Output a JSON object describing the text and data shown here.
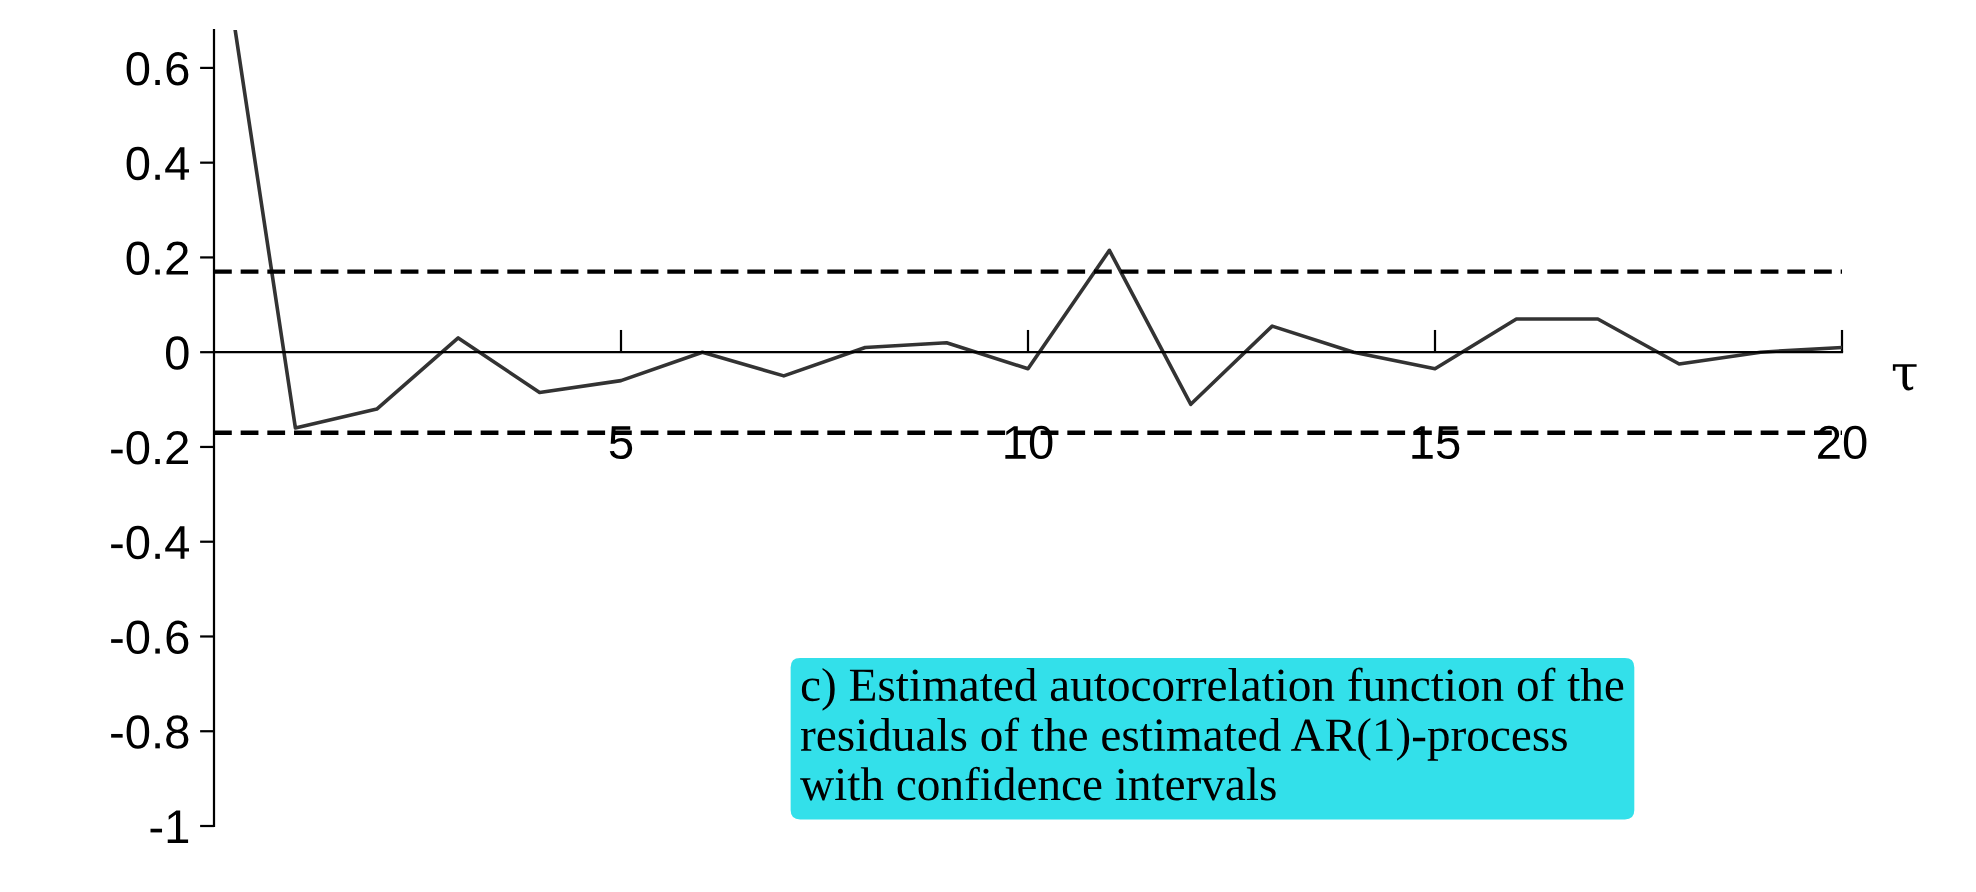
{
  "chart_data": {
    "type": "line",
    "xlabel": "τ",
    "annotations": [
      "c) Estimated autocorrelation function of the\nresiduals of the estimated AR(1)-process\nwith confidence intervals"
    ],
    "x": [
      0.26,
      1,
      2,
      3,
      4,
      5,
      6,
      7,
      8,
      9,
      10,
      11,
      12,
      13,
      14,
      15,
      16,
      17,
      18,
      19,
      20
    ],
    "series": [
      {
        "color": "#333333",
        "values": [
          0.68,
          -0.16,
          -0.12,
          0.03,
          -0.085,
          -0.06,
          0,
          -0.05,
          0.01,
          0.02,
          -0.035,
          0.215,
          -0.11,
          0.055,
          0,
          -0.035,
          0.07,
          0.07,
          -0.025,
          0,
          0.01
        ]
      }
    ],
    "xlim": [
      0,
      20
    ],
    "xticks": [
      5,
      10,
      15,
      20
    ],
    "ylim": [
      -1,
      0.68
    ],
    "yticks": [
      0.6,
      0.4,
      0.2,
      0,
      -0.2,
      -0.4,
      -0.6,
      -0.8,
      -1
    ],
    "ref_lines": [
      {
        "axis": "y",
        "value": 0.17,
        "label": null,
        "color": "#000000",
        "line_style": "dashed"
      },
      {
        "axis": "y",
        "value": -0.17,
        "label": null,
        "color": "#000000",
        "line_style": "dashed"
      }
    ],
    "grid": false,
    "legend": false,
    "marker": "none",
    "line_style": "solid"
  }
}
